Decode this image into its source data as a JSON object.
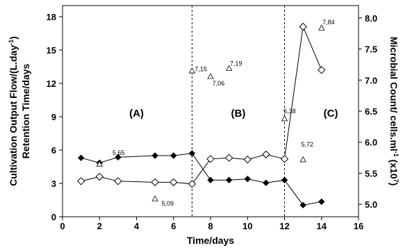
{
  "chart_data": {
    "type": "line",
    "xlabel": "Time/days",
    "ylabel_left": [
      "Cultivation Output Flow/(L.day",
      "-1",
      ")",
      "Retention Time/days"
    ],
    "ylabel_right": [
      "Microbial Count/ cells.ml",
      "-1",
      " (x10",
      "7",
      ")"
    ],
    "xlim": [
      0,
      16
    ],
    "ylim_left": [
      0,
      19
    ],
    "ylim_right": [
      4.8,
      8.2
    ],
    "x_ticks": [
      "0",
      "2",
      "4",
      "6",
      "8",
      "10",
      "12",
      "14",
      "16"
    ],
    "y_left_ticks": [
      "0",
      "3",
      "6",
      "9",
      "12",
      "15",
      "18"
    ],
    "y_right_ticks": [
      "5.0",
      "5.5",
      "6.0",
      "6.5",
      "7.0",
      "7.5",
      "8.0"
    ],
    "vertical_lines": [
      7,
      12
    ],
    "region_labels": [
      {
        "label": "(A)",
        "x": 4,
        "y": 9
      },
      {
        "label": "(B)",
        "x": 9.5,
        "y": 9
      },
      {
        "label": "(C)",
        "x": 14.5,
        "y": 9
      }
    ],
    "series": [
      {
        "axis": "left",
        "marker": "filled-diamond",
        "x": [
          1,
          2,
          3,
          5,
          6,
          7,
          8,
          9,
          10,
          11,
          12,
          13,
          14
        ],
        "y": [
          5.3,
          4.85,
          5.35,
          5.5,
          5.5,
          5.7,
          3.3,
          3.3,
          3.4,
          3.05,
          3.3,
          1.05,
          1.35
        ]
      },
      {
        "axis": "left",
        "marker": "open-diamond",
        "x": [
          1,
          2,
          3,
          5,
          6,
          7,
          8,
          9,
          10,
          11,
          12,
          13,
          14
        ],
        "y": [
          3.2,
          3.6,
          3.2,
          3.1,
          3.1,
          2.95,
          5.2,
          5.3,
          5.15,
          5.6,
          5.2,
          17.1,
          13.2
        ]
      },
      {
        "axis": "right",
        "marker": "open-triangle",
        "x": [
          2,
          5,
          7,
          8,
          9,
          12,
          13,
          14
        ],
        "y": [
          5.65,
          5.09,
          7.15,
          7.06,
          7.19,
          6.38,
          5.72,
          7.84
        ]
      }
    ],
    "annotations": [
      {
        "text": "5,65",
        "x": 2.7,
        "y": 5.55
      },
      {
        "text": "5,09",
        "x": 5.35,
        "y": 1.0
      },
      {
        "text": "7,15",
        "x": 7.15,
        "y": 13.1
      },
      {
        "text": "7,06",
        "x": 8.1,
        "y": 11.8
      },
      {
        "text": "7,19",
        "x": 9.05,
        "y": 13.6
      },
      {
        "text": "6,38",
        "x": 11.95,
        "y": 9.3
      },
      {
        "text": "5,72",
        "x": 12.9,
        "y": 6.3
      },
      {
        "text": "7,84",
        "x": 14.05,
        "y": 17.3
      }
    ]
  }
}
